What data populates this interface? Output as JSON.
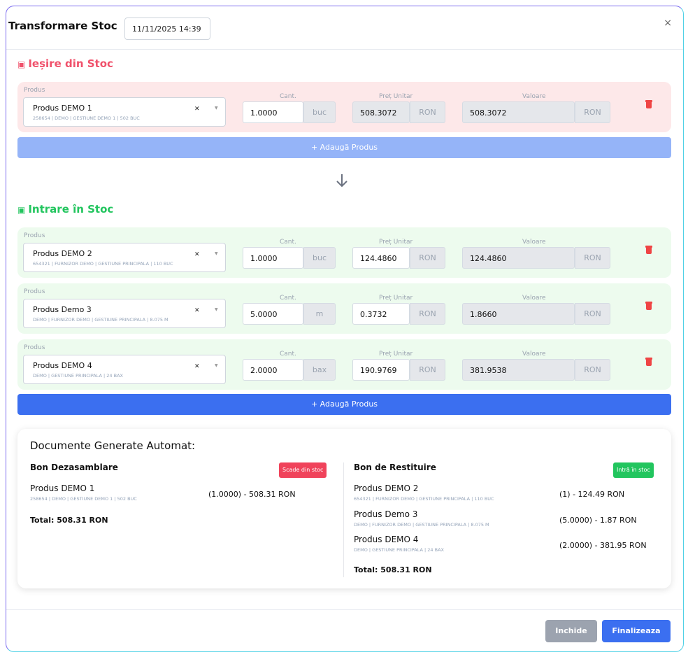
{
  "header": {
    "title": "Transformare Stoc",
    "date": "11/11/2025 14:39",
    "close_glyph": "×"
  },
  "out_section": {
    "title": "Ieșire din Stoc",
    "icon": "box-icon",
    "color": "#f0516b",
    "rows": [
      {
        "produs_label": "Produs",
        "product": "Produs DEMO 1",
        "details": "258654 | DEMO | GESTIUNE DEMO 1 | 502 BUC",
        "cant_label": "Cant.",
        "qty": "1.0000",
        "unit": "buc",
        "pret_label": "Preț Unitar",
        "price": "508.3072",
        "currency": "RON",
        "val_label": "Valoare",
        "value": "508.3072",
        "value_currency": "RON"
      }
    ],
    "add_label": "+ Adaugă Produs"
  },
  "in_section": {
    "title": "Intrare în Stoc",
    "icon": "box-icon",
    "color": "#22c55e",
    "rows": [
      {
        "produs_label": "Produs",
        "product": "Produs DEMO 2",
        "details": "654321 | FURNIZOR DEMO | GESTIUNE PRINCIPALA | 110 BUC",
        "cant_label": "Cant.",
        "qty": "1.0000",
        "unit": "buc",
        "pret_label": "Preț Unitar",
        "price": "124.4860",
        "currency": "RON",
        "val_label": "Valoare",
        "value": "124.4860",
        "value_currency": "RON"
      },
      {
        "produs_label": "Produs",
        "product": "Produs Demo 3",
        "details": "DEMO | FURNIZOR DEMO | GESTIUNE PRINCIPALA | 8.075 M",
        "cant_label": "Cant.",
        "qty": "5.0000",
        "unit": "m",
        "pret_label": "Preț Unitar",
        "price": "0.3732",
        "currency": "RON",
        "val_label": "Valoare",
        "value": "1.8660",
        "value_currency": "RON"
      },
      {
        "produs_label": "Produs",
        "product": "Produs DEMO 4",
        "details": "DEMO | GESTIUNE PRINCIPALA | 24 BAX",
        "cant_label": "Cant.",
        "qty": "2.0000",
        "unit": "bax",
        "pret_label": "Preț Unitar",
        "price": "190.9769",
        "currency": "RON",
        "val_label": "Valoare",
        "value": "381.9538",
        "value_currency": "RON"
      }
    ],
    "add_label": "+ Adaugă Produs"
  },
  "docs": {
    "title": "Documente Generate Automat:",
    "left": {
      "title": "Bon Dezasamblare",
      "badge": "Scade din stoc",
      "items": [
        {
          "name": "Produs DEMO 1",
          "details": "258654 | DEMO | GESTIUNE DEMO 1 | 502 BUC",
          "value": "(1.0000) - 508.31 RON"
        }
      ],
      "total": "Total: 508.31 RON"
    },
    "right": {
      "title": "Bon de Restituire",
      "badge": "Intră în stoc",
      "items": [
        {
          "name": "Produs DEMO 2",
          "details": "654321 | FURNIZOR DEMO | GESTIUNE PRINCIPALA | 110 BUC",
          "value": "(1) - 124.49 RON"
        },
        {
          "name": "Produs Demo 3",
          "details": "DEMO | FURNIZOR DEMO | GESTIUNE PRINCIPALA | 8.075 M",
          "value": "(5.0000) - 1.87 RON"
        },
        {
          "name": "Produs DEMO 4",
          "details": "DEMO | GESTIUNE PRINCIPALA | 24 BAX",
          "value": "(2.0000) - 381.95 RON"
        }
      ],
      "total": "Total: 508.31 RON"
    }
  },
  "footer": {
    "close_label": "Inchide",
    "finish_label": "Finalizeaza"
  },
  "colors": {
    "accent": "#3b6ff0",
    "danger": "#ef4444",
    "success": "#22c55e"
  }
}
